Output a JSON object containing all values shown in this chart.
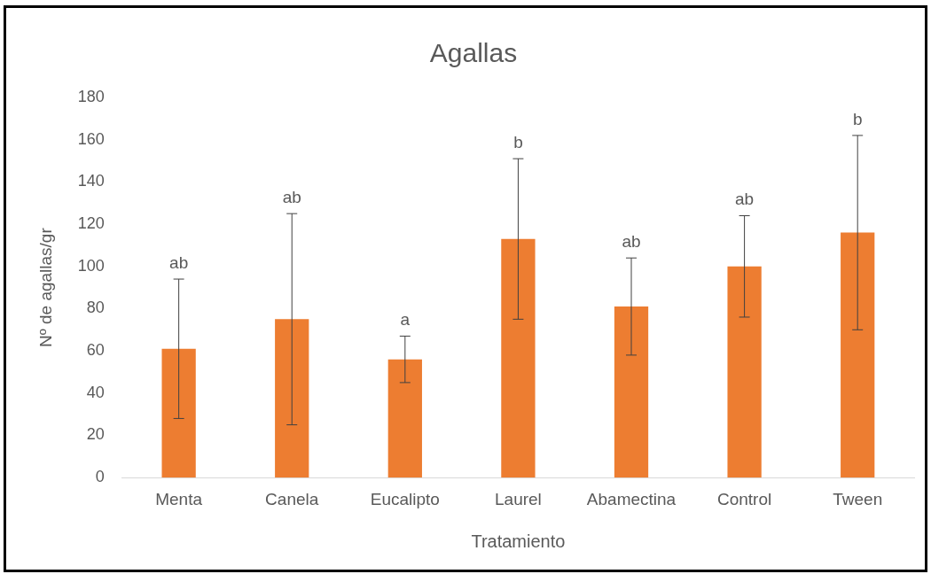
{
  "chart_data": {
    "type": "bar",
    "title": "Agallas",
    "xlabel": "Tratamiento",
    "ylabel": "Nº de agallas/gr",
    "categories": [
      "Menta",
      "Canela",
      "Eucalipto",
      "Laurel",
      "Abamectina",
      "Control",
      "Tween"
    ],
    "values": [
      61,
      75,
      56,
      113,
      81,
      100,
      116
    ],
    "errors": [
      33,
      50,
      11,
      38,
      23,
      24,
      46
    ],
    "color": "#ed7d31",
    "ylim": [
      0,
      180
    ],
    "yticks": [
      0,
      20,
      40,
      60,
      80,
      100,
      120,
      140,
      160,
      180
    ],
    "grid": false,
    "annotations": [
      {
        "text": "ab",
        "x": "Menta",
        "y": 94
      },
      {
        "text": "ab",
        "x": "Canela",
        "y": 125
      },
      {
        "text": "a",
        "x": "Eucalipto",
        "y": 67
      },
      {
        "text": "b",
        "x": "Laurel",
        "y": 151
      },
      {
        "text": "ab",
        "x": "Abamectina",
        "y": 104
      },
      {
        "text": "ab",
        "x": "Control",
        "y": 124
      },
      {
        "text": "b",
        "x": "Tween",
        "y": 162
      }
    ]
  }
}
